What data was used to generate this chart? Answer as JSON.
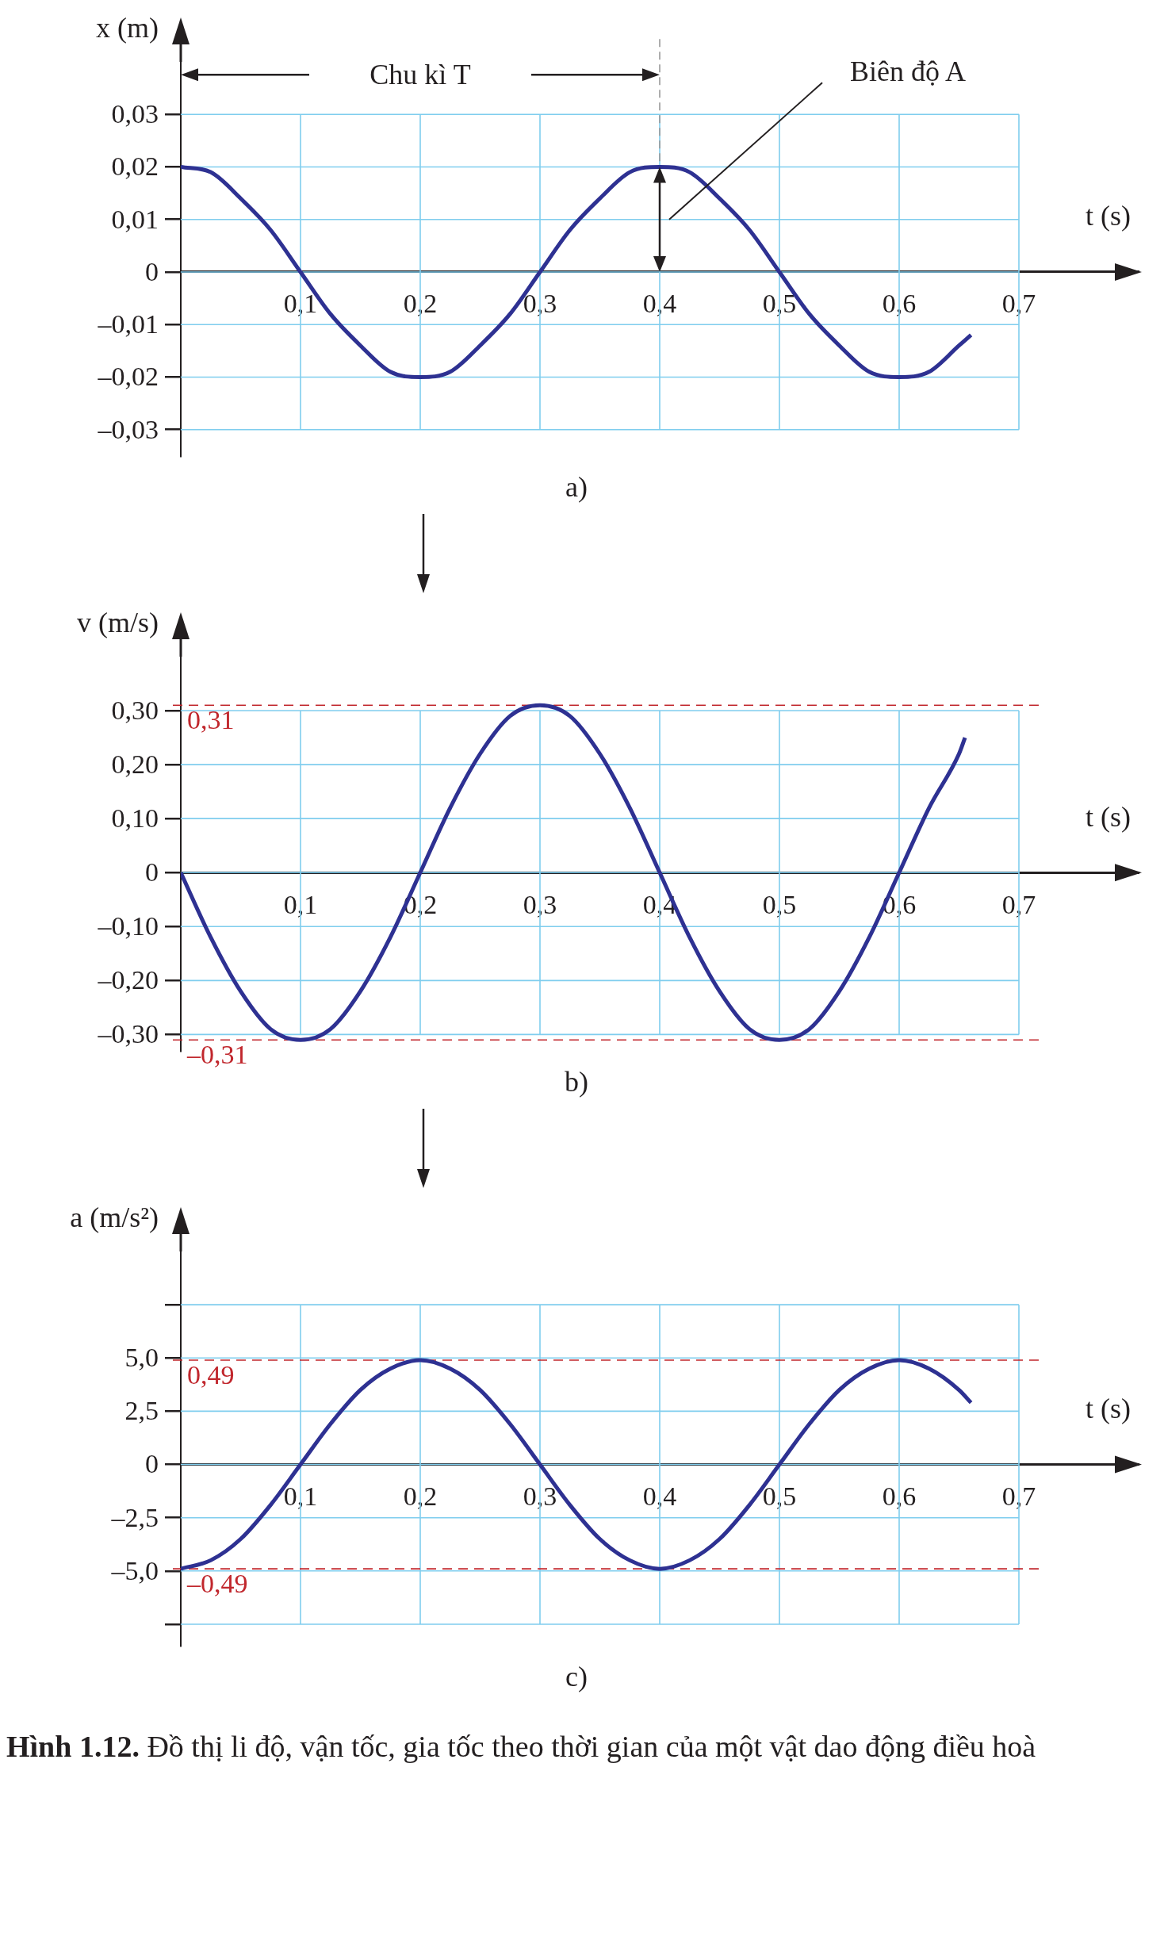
{
  "chart_data": [
    {
      "type": "line",
      "title": "a)",
      "xlabel": "t (s)",
      "ylabel": "x (m)",
      "x": [
        0,
        0.025,
        0.05,
        0.075,
        0.1,
        0.125,
        0.15,
        0.175,
        0.2,
        0.225,
        0.25,
        0.275,
        0.3,
        0.325,
        0.35,
        0.375,
        0.4,
        0.425,
        0.45,
        0.475,
        0.5,
        0.525,
        0.55,
        0.575,
        0.6,
        0.625,
        0.65,
        0.66
      ],
      "series": [
        {
          "color": "#2e3192",
          "values": [
            0.02,
            0.019,
            0.014,
            0.008,
            0,
            -0.008,
            -0.014,
            -0.019,
            -0.02,
            -0.019,
            -0.014,
            -0.008,
            0,
            0.008,
            0.014,
            0.019,
            0.02,
            0.019,
            0.014,
            0.008,
            0,
            -0.008,
            -0.014,
            -0.019,
            -0.02,
            -0.019,
            -0.014,
            -0.012
          ]
        }
      ],
      "xlim": [
        0,
        0.8
      ],
      "ylim": [
        -0.035,
        0.04
      ],
      "xticks": [
        {
          "value": 0.1,
          "label": "0,1"
        },
        {
          "value": 0.2,
          "label": "0,2"
        },
        {
          "value": 0.3,
          "label": "0,3"
        },
        {
          "value": 0.4,
          "label": "0,4"
        },
        {
          "value": 0.5,
          "label": "0,5"
        },
        {
          "value": 0.6,
          "label": "0,6"
        },
        {
          "value": 0.7,
          "label": "0,7"
        }
      ],
      "yticks": [
        {
          "value": -0.03,
          "label": "–0,03"
        },
        {
          "value": -0.02,
          "label": "–0,02"
        },
        {
          "value": -0.01,
          "label": "–0,01"
        },
        {
          "value": 0,
          "label": "0"
        },
        {
          "value": 0.01,
          "label": "0,01"
        },
        {
          "value": 0.02,
          "label": "0,02"
        },
        {
          "value": 0.03,
          "label": "0,03"
        }
      ],
      "grid": true,
      "marker": "none",
      "annotations": [
        "Chu kì T",
        "Biên độ A"
      ]
    },
    {
      "type": "line",
      "title": "b)",
      "xlabel": "t (s)",
      "ylabel": "v (m/s)",
      "x": [
        0,
        0.025,
        0.05,
        0.075,
        0.1,
        0.125,
        0.15,
        0.175,
        0.2,
        0.225,
        0.25,
        0.275,
        0.3,
        0.325,
        0.35,
        0.375,
        0.4,
        0.425,
        0.45,
        0.475,
        0.5,
        0.525,
        0.55,
        0.575,
        0.6,
        0.625,
        0.65,
        0.655
      ],
      "series": [
        {
          "color": "#2e3192",
          "values": [
            0,
            -0.12,
            -0.22,
            -0.29,
            -0.31,
            -0.29,
            -0.22,
            -0.12,
            0,
            0.12,
            0.22,
            0.29,
            0.31,
            0.29,
            0.22,
            0.12,
            0,
            -0.12,
            -0.22,
            -0.29,
            -0.31,
            -0.29,
            -0.22,
            -0.12,
            0,
            0.12,
            0.22,
            0.25
          ]
        }
      ],
      "xlim": [
        0,
        0.8
      ],
      "ylim": [
        -0.33,
        0.4
      ],
      "xticks": [
        {
          "value": 0.1,
          "label": "0,1"
        },
        {
          "value": 0.2,
          "label": "0,2"
        },
        {
          "value": 0.3,
          "label": "0,3"
        },
        {
          "value": 0.4,
          "label": "0,4"
        },
        {
          "value": 0.5,
          "label": "0,5"
        },
        {
          "value": 0.6,
          "label": "0,6"
        },
        {
          "value": 0.7,
          "label": "0,7"
        }
      ],
      "yticks": [
        {
          "value": -0.3,
          "label": "–0,30"
        },
        {
          "value": -0.2,
          "label": "–0,20"
        },
        {
          "value": -0.1,
          "label": "–0,10"
        },
        {
          "value": 0,
          "label": "0"
        },
        {
          "value": 0.1,
          "label": "0,10"
        },
        {
          "value": 0.2,
          "label": "0,20"
        },
        {
          "value": 0.3,
          "label": "0,30"
        }
      ],
      "grid": true,
      "marker": "none",
      "ref_lines": [
        {
          "axis": "y",
          "value": 0.31,
          "label": "0,31",
          "color": "#c1272d",
          "line_style": "dashed"
        },
        {
          "axis": "y",
          "value": -0.31,
          "label": "–0,31",
          "color": "#c1272d",
          "line_style": "dashed"
        }
      ]
    },
    {
      "type": "line",
      "title": "c)",
      "xlabel": "t (s)",
      "ylabel": "a (m/s²)",
      "x": [
        0,
        0.025,
        0.05,
        0.075,
        0.1,
        0.125,
        0.15,
        0.175,
        0.2,
        0.225,
        0.25,
        0.275,
        0.3,
        0.325,
        0.35,
        0.375,
        0.4,
        0.425,
        0.45,
        0.475,
        0.5,
        0.525,
        0.55,
        0.575,
        0.6,
        0.625,
        0.65,
        0.66
      ],
      "series": [
        {
          "color": "#2e3192",
          "values": [
            -4.9,
            -4.5,
            -3.5,
            -1.9,
            0,
            1.9,
            3.5,
            4.5,
            4.9,
            4.5,
            3.5,
            1.9,
            0,
            -1.9,
            -3.5,
            -4.5,
            -4.9,
            -4.5,
            -3.5,
            -1.9,
            0,
            1.9,
            3.5,
            4.5,
            4.9,
            4.5,
            3.5,
            2.9
          ]
        }
      ],
      "xlim": [
        0,
        0.8
      ],
      "ylim": [
        -8.5,
        10
      ],
      "xticks": [
        {
          "value": 0.1,
          "label": "0,1"
        },
        {
          "value": 0.2,
          "label": "0,2"
        },
        {
          "value": 0.3,
          "label": "0,3"
        },
        {
          "value": 0.4,
          "label": "0,4"
        },
        {
          "value": 0.5,
          "label": "0,5"
        },
        {
          "value": 0.6,
          "label": "0,6"
        },
        {
          "value": 0.7,
          "label": "0,7"
        }
      ],
      "yticks": [
        {
          "value": -7.5,
          "label": null
        },
        {
          "value": -5,
          "label": "–5,0"
        },
        {
          "value": -2.5,
          "label": "–2,5"
        },
        {
          "value": 0,
          "label": "0"
        },
        {
          "value": 2.5,
          "label": "2,5"
        },
        {
          "value": 5,
          "label": "5,0"
        },
        {
          "value": 7.5,
          "label": null
        }
      ],
      "grid": true,
      "marker": "none",
      "ref_lines": [
        {
          "axis": "y",
          "value": 4.9,
          "color": "#c1272d",
          "line_style": "dashed"
        },
        {
          "axis": "y",
          "value": -4.9,
          "color": "#c1272d",
          "line_style": "dashed"
        }
      ],
      "annotations": [
        "0,49",
        "–0,49",
        "Hình 1.12. Đồ thị li độ, vận tốc, gia tốc theo thời gian của một vật dao động điều hoà"
      ]
    }
  ]
}
